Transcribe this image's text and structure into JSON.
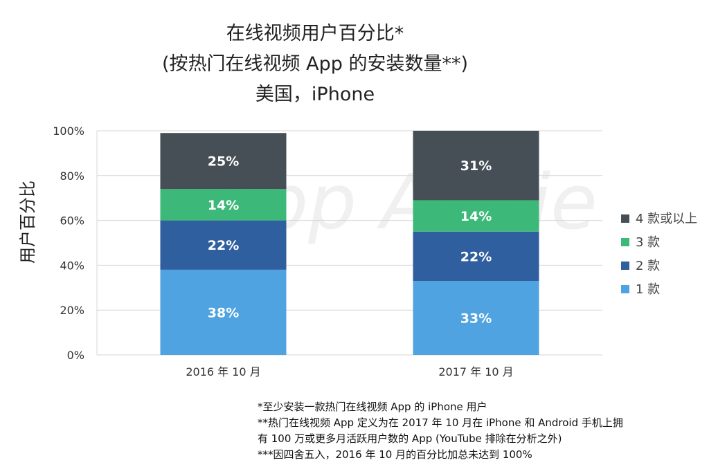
{
  "title_lines": [
    "在线视频用户百分比*",
    "(按热门在线视频 App 的安装数量**)",
    "美国，iPhone"
  ],
  "watermark": "App Annie",
  "chart_data": {
    "type": "bar",
    "stacked": true,
    "categories": [
      "2016 年 10 月",
      "2017 年 10 月"
    ],
    "series": [
      {
        "name": "1 款",
        "values": [
          38,
          33
        ],
        "labels": [
          "38%",
          "33%"
        ],
        "color": "#4fa3e0"
      },
      {
        "name": "2 款",
        "values": [
          22,
          22
        ],
        "labels": [
          "22%",
          "22%"
        ],
        "color": "#2f5f9e"
      },
      {
        "name": "3 款",
        "values": [
          14,
          14
        ],
        "labels": [
          "14%",
          "14%"
        ],
        "color": "#3cb878"
      },
      {
        "name": "4 款或以上",
        "values": [
          25,
          31
        ],
        "labels": [
          "25%",
          "31%"
        ],
        "color": "#454f55"
      }
    ],
    "ylabel": "用户百分比",
    "yticks": [
      "0%",
      "20%",
      "40%",
      "60%",
      "80%",
      "100%"
    ],
    "ylim": [
      0,
      100
    ],
    "grid": true,
    "legend_position": "right"
  },
  "footnotes": [
    "*至少安装一款热门在线视频 App 的 iPhone 用户",
    "**热门在线视频 App 定义为在 2017 年 10 月在 iPhone 和 Android 手机上拥",
    "有 100 万或更多月活跃用户数的 App (YouTube 排除在分析之外)",
    "***因四舍五入，2016 年 10 月的百分比加总未达到 100%"
  ]
}
